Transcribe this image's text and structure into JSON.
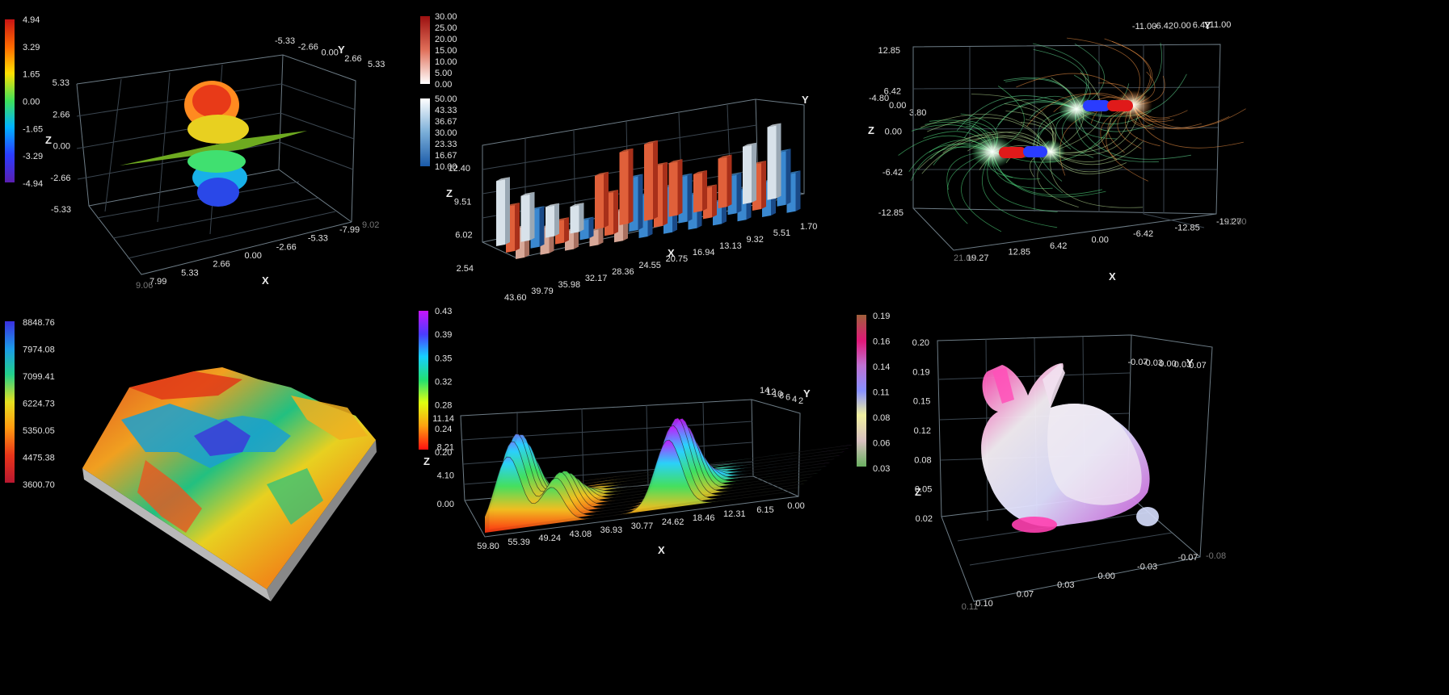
{
  "chart_data": [
    {
      "id": "scatter-lobe",
      "type": "surface",
      "colorbar": {
        "ticks": [
          "4.94",
          "3.29",
          "1.65",
          "0.00",
          "-1.65",
          "-3.29",
          "-4.94"
        ],
        "colors": [
          "#c81414",
          "#ff7a00",
          "#ffe000",
          "#3ee05a",
          "#00b3ff",
          "#2b3cff",
          "#5a1fb0"
        ]
      },
      "z_ticks": [
        "5.33",
        "2.66",
        "0.00",
        "-2.66",
        "-5.33"
      ],
      "x_ticks": [
        "7.99",
        "5.33",
        "2.66",
        "0.00",
        "-2.66",
        "-5.33",
        "-7.99"
      ],
      "y_ticks": [
        "-5.33",
        "-2.66",
        "0.00",
        "2.66",
        "5.33"
      ],
      "dim_ticks": [
        "9.06",
        "9.02"
      ],
      "xlabel": "X",
      "ylabel": "Y",
      "zlabel": "Z"
    },
    {
      "id": "bars-3d",
      "type": "bar",
      "colorbar_red": {
        "ticks": [
          "30.00",
          "25.00",
          "20.00",
          "15.00",
          "10.00",
          "5.00",
          "0.00"
        ]
      },
      "colorbar_blue": {
        "ticks": [
          "50.00",
          "43.33",
          "36.67",
          "30.00",
          "23.33",
          "16.67",
          "10.00"
        ]
      },
      "z_ticks": [
        "12.40",
        "9.51",
        "6.02",
        "2.54"
      ],
      "x_ticks": [
        "43.60",
        "39.79",
        "35.98",
        "32.17",
        "28.36",
        "24.55",
        "20.75",
        "16.94",
        "13.13",
        "9.32",
        "5.51",
        "1.70"
      ],
      "y_ticks": [
        "-4.80",
        "0.00",
        "3.80"
      ],
      "xlabel": "X",
      "ylabel": "Y",
      "zlabel": "Z",
      "series": [
        {
          "values": [
            8.5,
            6.0,
            4.0,
            3.5,
            7.0,
            9.5,
            10.0,
            7.0,
            5.0,
            6.5,
            7.5,
            9.5
          ]
        },
        {
          "values": [
            6.0,
            5.0,
            3.0,
            2.5,
            5.5,
            7.0,
            8.0,
            6.0,
            4.0,
            5.0,
            6.0,
            7.0
          ]
        },
        {
          "values": [
            4.0,
            3.5,
            2.5,
            2.0,
            4.0,
            5.5,
            6.0,
            4.5,
            3.0,
            4.0,
            4.5,
            5.0
          ]
        }
      ]
    },
    {
      "id": "field-lines",
      "type": "vector-field",
      "z_ticks": [
        "12.85",
        "6.42",
        "0.00",
        "-6.42",
        "-12.85"
      ],
      "x_ticks": [
        "19.27",
        "12.85",
        "6.42",
        "0.00",
        "-6.42",
        "-12.85",
        "-19.27"
      ],
      "y_ticks": [
        "-11.00",
        "-6.42",
        "0.00",
        "6.42",
        "11.00"
      ],
      "dim_ticks": [
        "21.00",
        "21.00"
      ],
      "xlabel": "X",
      "ylabel": "Y",
      "zlabel": "Z"
    },
    {
      "id": "terrain",
      "type": "surface",
      "colorbar": {
        "ticks": [
          "8848.76",
          "7974.08",
          "7099.41",
          "6224.73",
          "5350.05",
          "4475.38",
          "3600.70"
        ],
        "colors": [
          "#3a2fe0",
          "#1c9be8",
          "#22d08a",
          "#e6e020",
          "#ff9a10",
          "#e8341a",
          "#b81830"
        ]
      }
    },
    {
      "id": "ridge-waves",
      "type": "area",
      "colorbar": {
        "ticks": [
          "0.43",
          "0.39",
          "0.35",
          "0.32",
          "0.28",
          "0.24",
          "0.20"
        ],
        "colors": [
          "#c814ff",
          "#4a3cff",
          "#16d0ff",
          "#22e070",
          "#e0ff10",
          "#ffa010",
          "#ff1010"
        ]
      },
      "z_ticks": [
        "11.14",
        "8.21",
        "4.10",
        "0.00"
      ],
      "x_ticks": [
        "59.80",
        "55.39",
        "49.24",
        "43.08",
        "36.93",
        "30.77",
        "24.62",
        "18.46",
        "12.31",
        "6.15",
        "0.00"
      ],
      "y_ticks": [
        "14",
        "12",
        "10",
        "8",
        "6",
        "4",
        "2"
      ],
      "xlabel": "X",
      "ylabel": "Y",
      "zlabel": "Z",
      "peaks": [
        {
          "x": 55.39,
          "z": 10.5
        },
        {
          "x": 47.0,
          "z": 5.2
        },
        {
          "x": 24.62,
          "z": 9.8
        }
      ]
    },
    {
      "id": "bunny",
      "type": "scatter",
      "colorbar": {
        "ticks": [
          "0.19",
          "0.16",
          "0.14",
          "0.11",
          "0.08",
          "0.06",
          "0.03"
        ],
        "colors": [
          "#a0603a",
          "#e01878",
          "#c070d0",
          "#8890ff",
          "#f0f0a0",
          "#d8c0c0",
          "#6ab060"
        ]
      },
      "z_ticks": [
        "0.20",
        "0.19",
        "0.15",
        "0.12",
        "0.08",
        "0.05",
        "0.02"
      ],
      "x_ticks": [
        "0.10",
        "0.07",
        "0.03",
        "0.00",
        "-0.03",
        "-0.07"
      ],
      "y_ticks": [
        "-0.07",
        "-0.03",
        "0.00",
        "0.03",
        "0.07"
      ],
      "dim_ticks": [
        "0.11",
        "-0.08"
      ],
      "xlabel": "X",
      "ylabel": "Y",
      "zlabel": "Z"
    }
  ]
}
